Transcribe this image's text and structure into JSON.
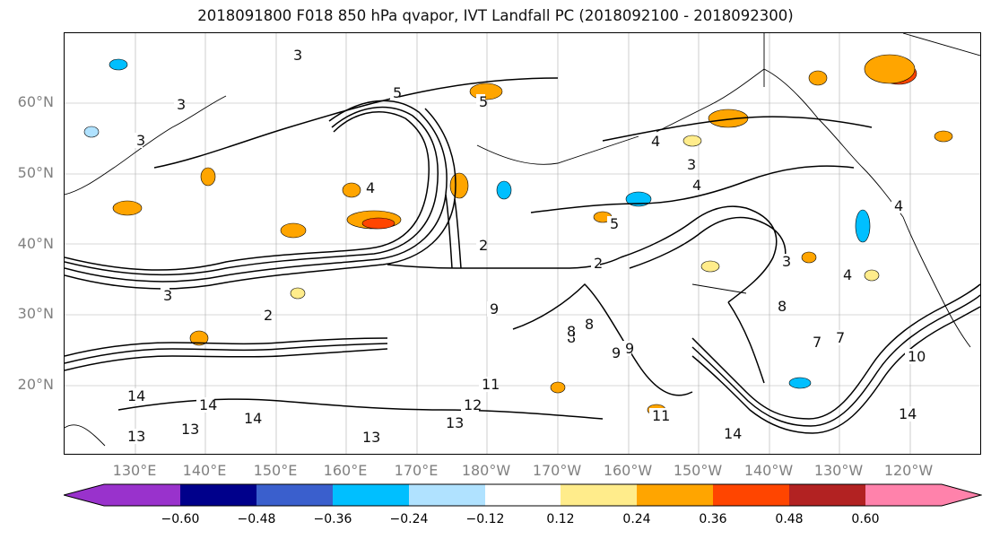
{
  "title": "2018091800 F018 850 hPa qvapor, IVT Landfall PC (2018092100 - 2018092300)",
  "lat_labels": [
    "60°N",
    "50°N",
    "40°N",
    "30°N",
    "20°N"
  ],
  "lon_labels": [
    "130°E",
    "140°E",
    "150°E",
    "160°E",
    "170°E",
    "180°W",
    "170°W",
    "160°W",
    "150°W",
    "140°W",
    "130°W",
    "120°W"
  ],
  "contour_labels": [
    "3",
    "3",
    "3",
    "5",
    "5",
    "4",
    "4",
    "3",
    "4",
    "5",
    "2",
    "2",
    "3",
    "2",
    "4",
    "3",
    "4",
    "8",
    "9",
    "7",
    "8",
    "9",
    "10",
    "14",
    "14",
    "13",
    "13",
    "14",
    "13",
    "13",
    "12",
    "11",
    "14",
    "11",
    "8",
    "8",
    "9",
    "7",
    "14"
  ],
  "colorbar": {
    "ticks": [
      "−0.60",
      "−0.48",
      "−0.36",
      "−0.24",
      "−0.12",
      "0.12",
      "0.24",
      "0.36",
      "0.48",
      "0.60"
    ],
    "colors": [
      "#9932cc",
      "#00008b",
      "#3a5fcd",
      "#00bfff",
      "#b0e2ff",
      "#ffffff",
      "#ffec8b",
      "#ffa500",
      "#ff4500",
      "#b22222",
      "#ff82ab"
    ]
  },
  "shading_colors": {
    "light_blue": "#b0e2ff",
    "blue": "#00bfff",
    "yellow": "#ffec8b",
    "orange": "#ffa500",
    "red_orange": "#ff4500"
  }
}
